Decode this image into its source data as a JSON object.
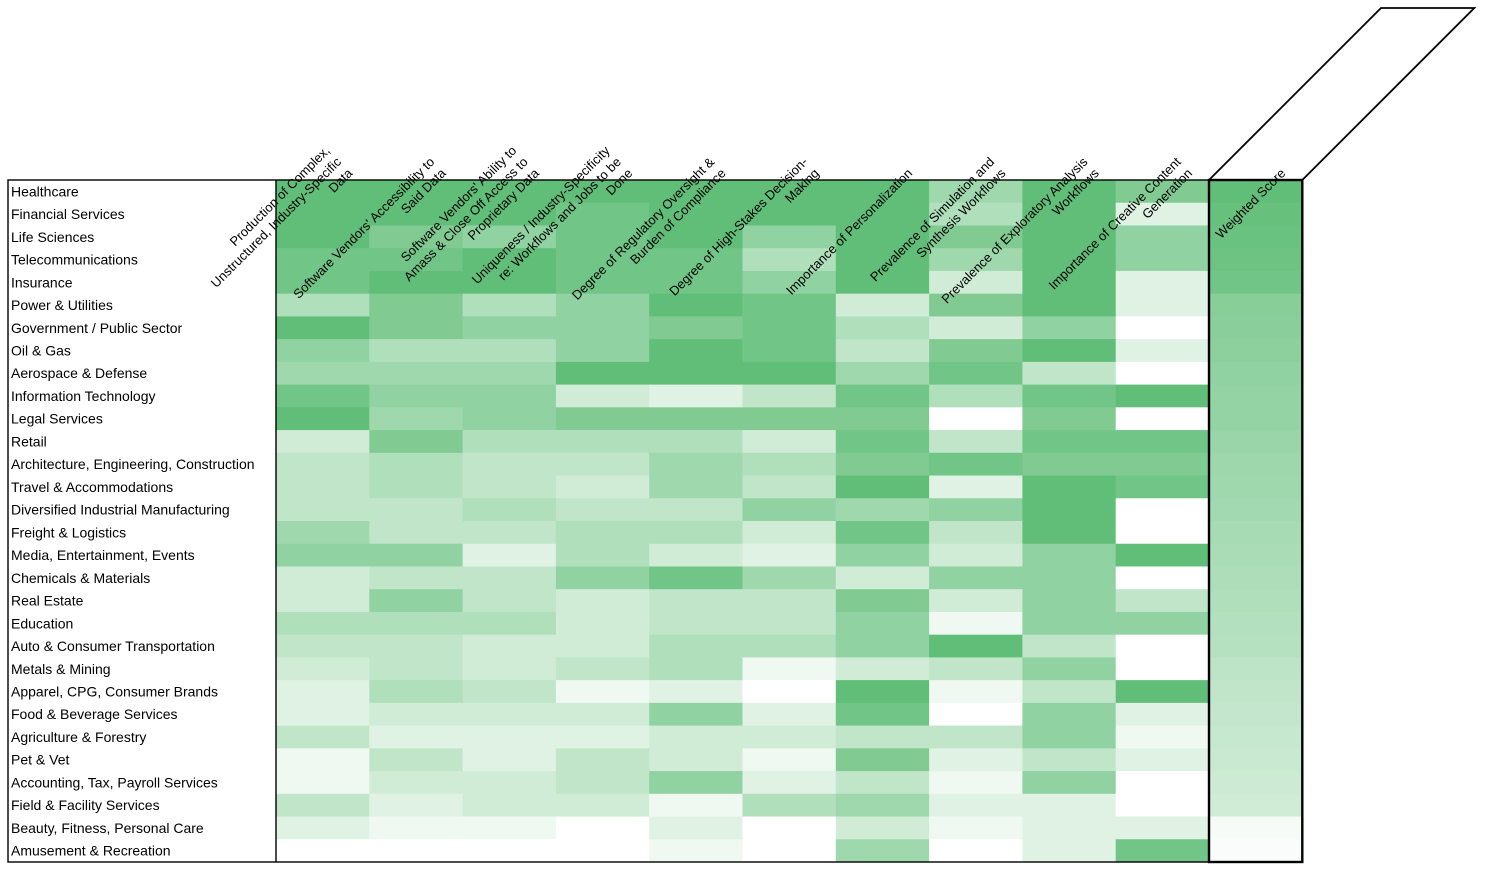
{
  "chart_data": {
    "type": "heatmap",
    "title": "",
    "columns": [
      [
        "Production of Complex,",
        "Unstructured, Industry-Specific",
        "Data"
      ],
      [
        "Software Vendors' Accessibility to",
        "Said Data"
      ],
      [
        "Software Vendors' Ability to",
        "Amass & Close Off Access to",
        "Proprietary Data"
      ],
      [
        "Uniqueness / Industry-Specificity",
        "re: Workflows and Jobs to be",
        "Done"
      ],
      [
        "Degree of Regulatory Oversight &",
        "Burden of Compliance"
      ],
      [
        "Degree of High-Stakes Decision-",
        "Making"
      ],
      [
        "Importance of Personalization"
      ],
      [
        "Prevalence of Simulation and",
        "Synthesis Workflows"
      ],
      [
        "Prevalence of Exploratory Analysis",
        "Workflows"
      ],
      [
        "Importance of Creative Content",
        "Generation"
      ],
      [
        "Weighted Score"
      ]
    ],
    "rows": [
      "Healthcare",
      "Financial Services",
      "Life Sciences",
      "Telecommunications",
      "Insurance",
      "Power & Utilities",
      "Government / Public Sector",
      "Oil & Gas",
      "Aerospace & Defense",
      "Information Technology",
      "Legal Services",
      "Retail",
      "Architecture, Engineering, Construction",
      "Travel & Accommodations",
      "Diversified Industrial Manufacturing",
      "Freight & Logistics",
      "Media, Entertainment, Events",
      "Chemicals & Materials",
      "Real Estate",
      "Education",
      "Auto & Consumer Transportation",
      "Metals & Mining",
      "Apparel, CPG, Consumer Brands",
      "Food & Beverage Services",
      "Agriculture & Forestry",
      "Pet & Vet",
      "Accounting, Tax, Payroll Services",
      "Field & Facility Services",
      "Beauty, Fitness, Personal Care",
      "Amusement & Recreation"
    ],
    "values": [
      [
        5,
        5,
        5,
        5,
        5,
        5,
        5,
        3,
        5,
        4,
        5.0
      ],
      [
        5,
        5,
        5,
        4.5,
        5,
        5,
        5,
        2.5,
        5,
        1,
        4.8
      ],
      [
        5,
        4,
        3.5,
        4.5,
        5,
        3.5,
        5,
        4,
        5,
        3.5,
        4.7
      ],
      [
        4.5,
        4.5,
        5,
        4.5,
        4.5,
        2.5,
        5,
        3,
        5,
        3.5,
        4.6
      ],
      [
        4.5,
        5,
        5,
        4.5,
        4.5,
        3.5,
        5,
        1.5,
        5,
        1,
        4.5
      ],
      [
        2.5,
        4,
        2.5,
        3.5,
        5,
        4.5,
        1.5,
        4,
        5,
        1,
        3.8
      ],
      [
        5,
        4,
        3.5,
        3.5,
        4,
        4.5,
        2.5,
        1.5,
        3.5,
        0,
        3.7
      ],
      [
        3.5,
        2.5,
        2.5,
        3.5,
        5,
        4.5,
        2,
        4,
        5,
        1,
        3.6
      ],
      [
        3,
        3,
        3,
        5,
        5,
        5,
        3,
        4.5,
        2,
        0,
        3.5
      ],
      [
        4.5,
        3.5,
        3.5,
        1.5,
        1,
        2,
        4.5,
        2.5,
        4.5,
        5,
        3.4
      ],
      [
        5,
        3,
        3.5,
        4,
        4,
        4,
        4,
        0,
        4,
        0,
        3.4
      ],
      [
        1.5,
        4,
        2.5,
        2.5,
        2.5,
        1.5,
        4.5,
        2,
        4.5,
        4.5,
        3.2
      ],
      [
        2,
        2.5,
        2,
        2,
        3,
        2.5,
        4,
        4.5,
        4,
        4,
        3.1
      ],
      [
        2,
        2.5,
        2,
        1.5,
        3,
        2,
        5,
        1,
        5,
        4.5,
        3.0
      ],
      [
        2,
        2,
        2.5,
        2,
        2,
        3.5,
        3,
        3.5,
        5,
        0,
        2.9
      ],
      [
        3,
        2,
        2,
        2.5,
        2.5,
        1.5,
        4.5,
        2,
        5,
        0,
        2.8
      ],
      [
        3.5,
        3.5,
        1,
        2.5,
        1.5,
        1,
        3.5,
        1.5,
        3.5,
        5,
        2.7
      ],
      [
        1.5,
        2,
        2,
        3.5,
        4.5,
        3,
        1.5,
        3.5,
        3.5,
        0,
        2.6
      ],
      [
        1.5,
        3.5,
        2,
        1.5,
        2,
        2,
        4,
        1.5,
        3.5,
        2,
        2.5
      ],
      [
        2.5,
        2.5,
        2.5,
        1.5,
        2,
        2,
        3.5,
        0.5,
        3.5,
        3.5,
        2.4
      ],
      [
        2,
        2,
        1.5,
        1.5,
        2.5,
        2.5,
        3.5,
        5,
        2,
        0,
        2.3
      ],
      [
        1.5,
        2,
        1.5,
        2,
        2.5,
        0.5,
        1.5,
        2,
        3.5,
        0,
        2.1
      ],
      [
        1,
        2.5,
        2,
        0.5,
        1,
        0,
        5,
        0.5,
        2,
        5,
        2.0
      ],
      [
        1,
        1.5,
        1.5,
        1.5,
        3.5,
        1,
        4.5,
        0,
        3.5,
        1,
        1.9
      ],
      [
        2,
        1,
        1,
        1,
        1.5,
        1.5,
        2,
        2,
        3.5,
        0.5,
        1.8
      ],
      [
        0.5,
        2,
        1,
        2,
        1.5,
        0.5,
        4,
        1,
        2,
        1,
        1.7
      ],
      [
        0.5,
        1.5,
        1.5,
        2,
        3.5,
        1,
        2,
        0.5,
        3.5,
        0,
        1.6
      ],
      [
        2,
        1,
        1.5,
        1.5,
        0.5,
        2.5,
        3,
        1,
        1,
        0,
        1.5
      ],
      [
        1,
        0.5,
        0.5,
        0,
        1,
        0,
        1.5,
        0.5,
        1,
        1,
        0.3
      ],
      [
        0,
        0,
        0,
        0,
        0.5,
        0,
        3,
        0,
        1,
        4.5,
        0.2
      ]
    ],
    "scale": [
      0,
      5
    ],
    "color_low": "#ffffff",
    "color_high": "#61be78",
    "grid": false
  }
}
